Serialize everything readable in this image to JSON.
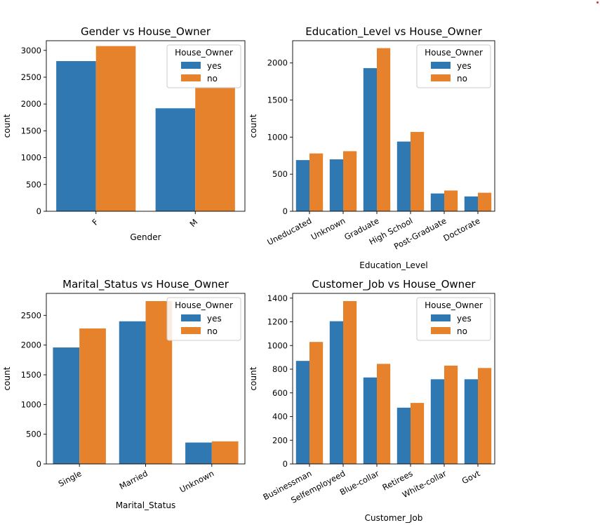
{
  "colors": {
    "yes": "#2f78b2",
    "no": "#e6822c"
  },
  "chart_data": [
    {
      "type": "bar",
      "title": "Gender vs House_Owner",
      "xlabel": "Gender",
      "ylabel": "count",
      "categories": [
        "F",
        "M"
      ],
      "series": [
        {
          "name": "yes",
          "values": [
            2800,
            1920
          ]
        },
        {
          "name": "no",
          "values": [
            3080,
            2320
          ]
        }
      ],
      "ylim": [
        0,
        3180
      ],
      "yticks": [
        0,
        500,
        1000,
        1500,
        2000,
        2500,
        3000
      ],
      "legend_title": "House_Owner",
      "legend": "top-right",
      "grid": false
    },
    {
      "type": "bar",
      "title": "Education_Level vs House_Owner",
      "xlabel": "Education_Level",
      "ylabel": "count",
      "categories": [
        "Uneducated",
        "Unknown",
        "Graduate",
        "High School",
        "Post-Graduate",
        "Doctorate"
      ],
      "series": [
        {
          "name": "yes",
          "values": [
            690,
            700,
            1930,
            940,
            240,
            200
          ]
        },
        {
          "name": "no",
          "values": [
            780,
            810,
            2200,
            1070,
            280,
            250
          ]
        }
      ],
      "ylim": [
        0,
        2300
      ],
      "yticks": [
        0,
        500,
        1000,
        1500,
        2000
      ],
      "legend_title": "House_Owner",
      "legend": "top-right",
      "grid": false
    },
    {
      "type": "bar",
      "title": "Marital_Status vs House_Owner",
      "xlabel": "Marital_Status",
      "ylabel": "count",
      "categories": [
        "Single",
        "Married",
        "Unknown"
      ],
      "series": [
        {
          "name": "yes",
          "values": [
            1960,
            2400,
            360
          ]
        },
        {
          "name": "no",
          "values": [
            2280,
            2740,
            380
          ]
        }
      ],
      "ylim": [
        0,
        2870
      ],
      "yticks": [
        0,
        500,
        1000,
        1500,
        2000,
        2500
      ],
      "legend_title": "House_Owner",
      "legend": "top-right",
      "grid": false
    },
    {
      "type": "bar",
      "title": "Customer_Job vs House_Owner",
      "xlabel": "Customer_Job",
      "ylabel": "count",
      "categories": [
        "Businessman",
        "Selfemployeed",
        "Blue-collar",
        "Retirees",
        "White-collar",
        "Govt"
      ],
      "series": [
        {
          "name": "yes",
          "values": [
            870,
            1205,
            730,
            475,
            715,
            715
          ]
        },
        {
          "name": "no",
          "values": [
            1030,
            1375,
            845,
            515,
            830,
            810
          ]
        }
      ],
      "ylim": [
        0,
        1440
      ],
      "yticks": [
        0,
        200,
        400,
        600,
        800,
        1000,
        1200,
        1400
      ],
      "legend_title": "House_Owner",
      "legend": "top-right",
      "grid": false
    }
  ]
}
